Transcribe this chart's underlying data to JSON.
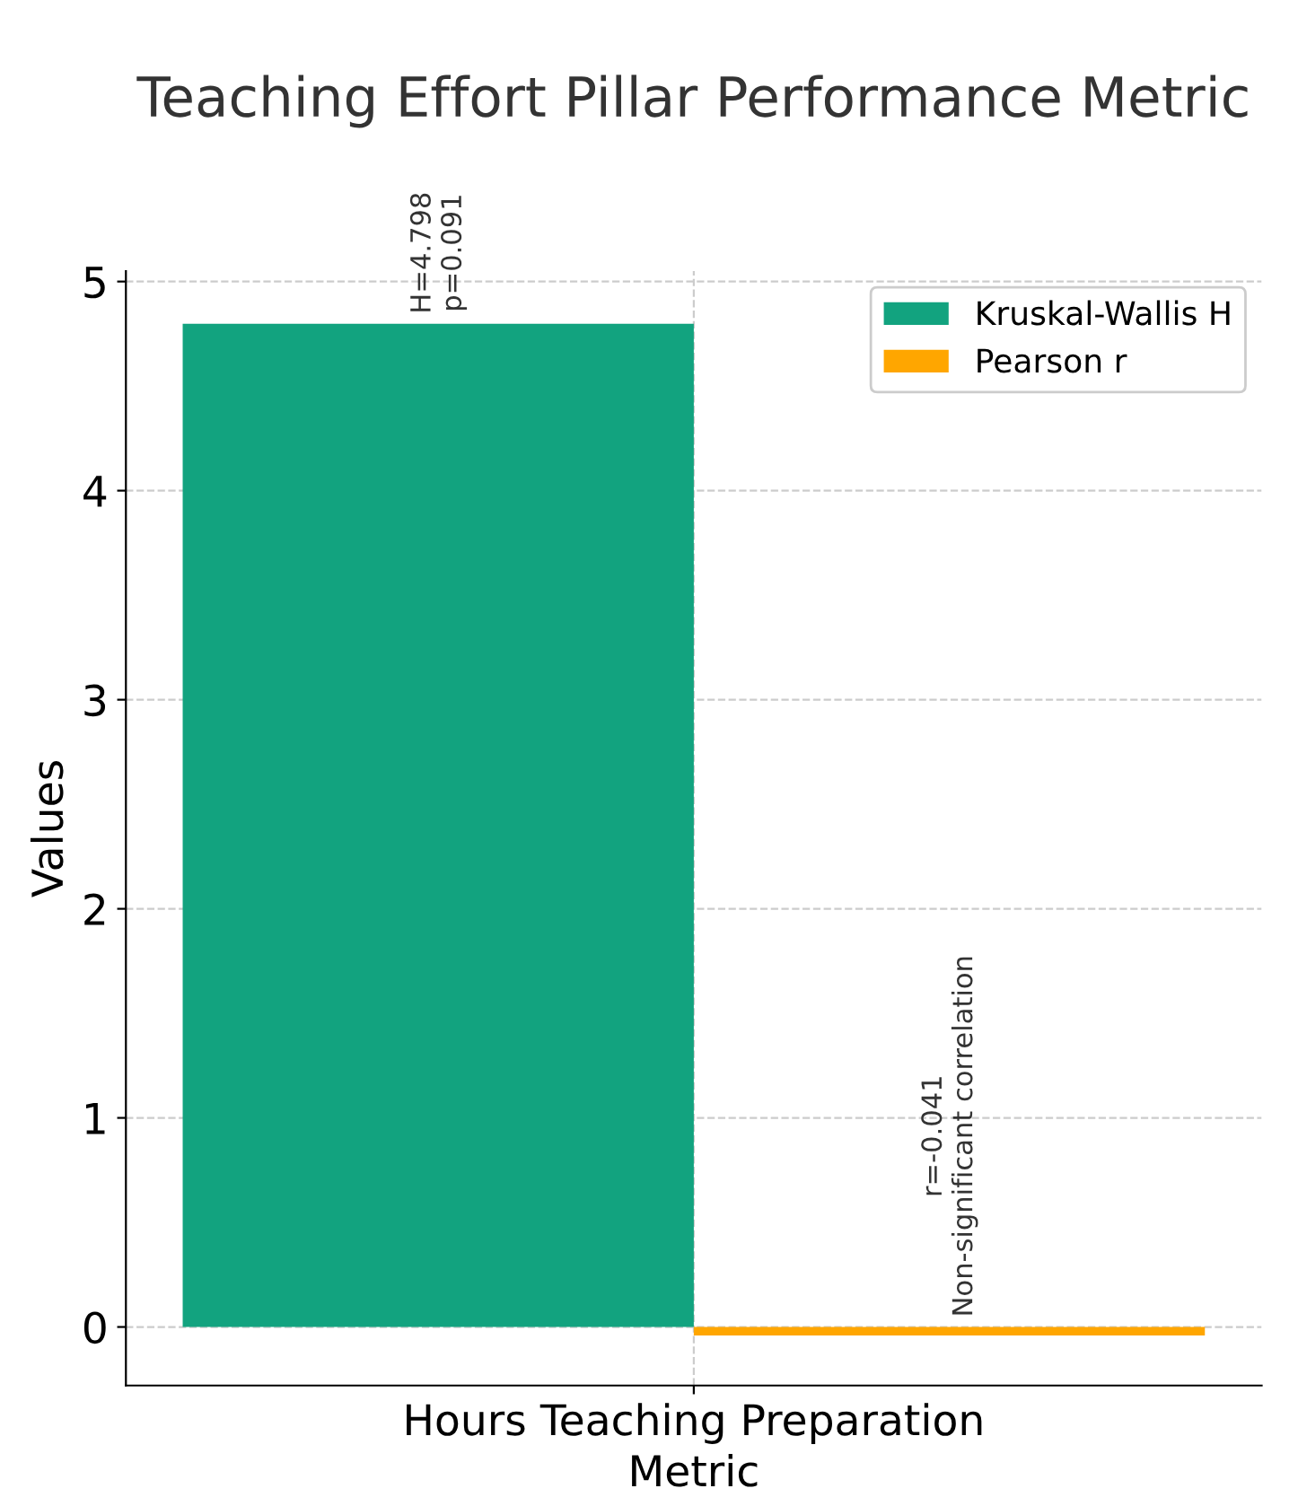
{
  "chart_data": {
    "type": "bar",
    "title": "Teaching Effort Pillar Performance Metric",
    "xlabel": "Metric",
    "ylabel": "Values",
    "categories": [
      "Hours Teaching Preparation"
    ],
    "series": [
      {
        "name": "Kruskal-Wallis H",
        "color": "#12a37f",
        "values": [
          4.798
        ]
      },
      {
        "name": "Pearson r",
        "color": "#ffa600",
        "values": [
          -0.041
        ]
      }
    ],
    "annotations": [
      "H=4.798\np=0.091",
      "r=-0.041\nNon-significant correlation"
    ],
    "ylim": [
      -0.28,
      5.05
    ],
    "yticks": [
      0,
      1,
      2,
      3,
      4,
      5
    ],
    "grid": true,
    "legend": "top right"
  }
}
